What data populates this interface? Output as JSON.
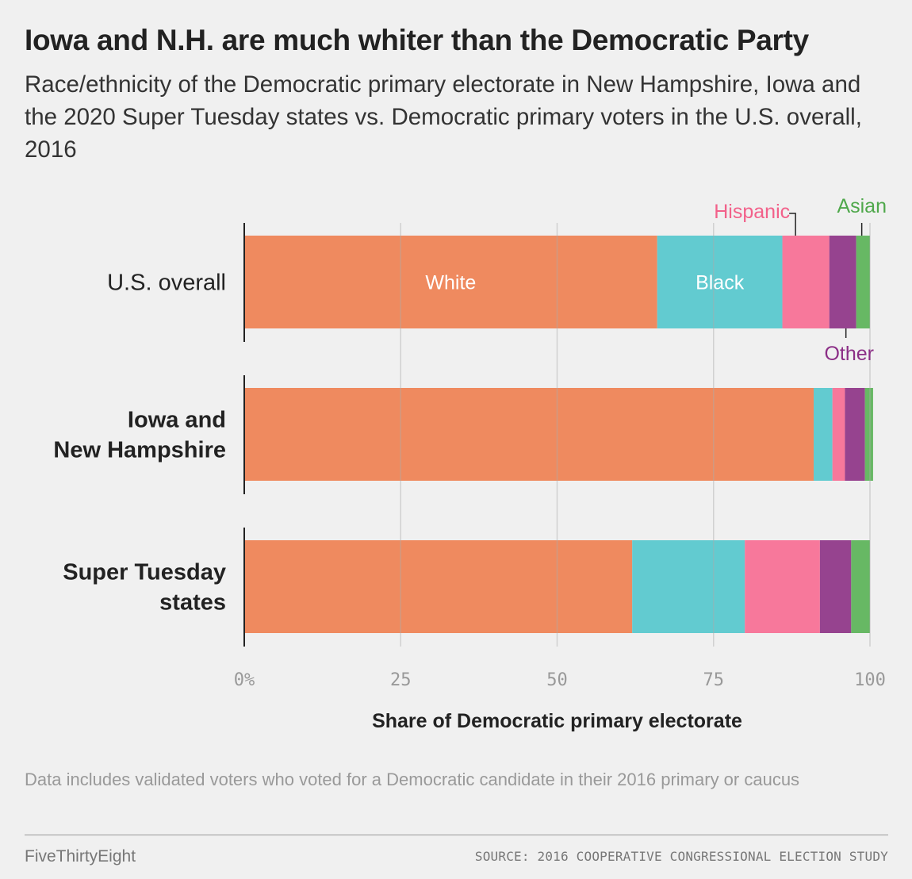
{
  "title": "Iowa and N.H. are much whiter than the Democratic Party",
  "subtitle": "Race/ethnicity of the Democratic primary electorate in New Hampshire, Iowa and the 2020 Super Tuesday states vs. Democratic primary voters in the U.S. overall, 2016",
  "note": "Data includes validated voters who voted for a Democratic candidate in their 2016 primary or caucus",
  "brand": "FiveThirtyEight",
  "source": "SOURCE: 2016 COOPERATIVE CONGRESSIONAL ELECTION STUDY",
  "chart_data": {
    "type": "bar",
    "orientation": "horizontal",
    "stacked": true,
    "categories": [
      [
        "U.S. overall"
      ],
      [
        "Iowa and",
        "New Hampshire"
      ],
      [
        "Super Tuesday",
        "states"
      ]
    ],
    "category_bold": [
      false,
      true,
      true
    ],
    "series": [
      {
        "name": "White",
        "color": "#ef8a5f",
        "values": [
          66,
          91,
          62
        ]
      },
      {
        "name": "Black",
        "color": "#62cbd0",
        "values": [
          20,
          3,
          18
        ]
      },
      {
        "name": "Hispanic",
        "color": "#f7789b",
        "values": [
          7.5,
          2,
          12
        ]
      },
      {
        "name": "Other",
        "color": "#96438f",
        "values": [
          4.3,
          3.2,
          5
        ]
      },
      {
        "name": "Asian",
        "color": "#67b864",
        "values": [
          2.2,
          1.3,
          3
        ]
      }
    ],
    "xlim": [
      0,
      100
    ],
    "xticks": [
      0,
      25,
      50,
      75,
      100
    ],
    "xtick_labels": [
      "0%",
      "25",
      "50",
      "75",
      "100"
    ],
    "xlabel": "Share of Democratic primary electorate",
    "label_colors": {
      "White": "#ffffff",
      "Black": "#ffffff",
      "Hispanic": "#f2618a",
      "Other": "#8b2e86",
      "Asian": "#4fa84b"
    },
    "grid": true
  }
}
